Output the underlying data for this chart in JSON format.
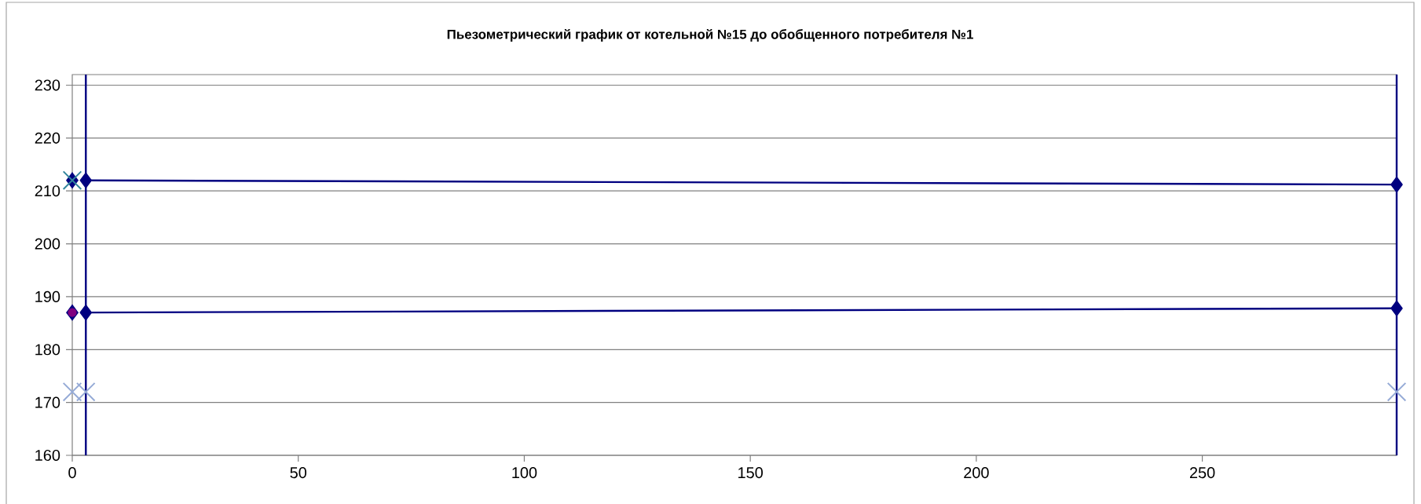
{
  "chart_data": {
    "type": "line",
    "title": "Пьезометрический график от котельной №15 до обобщенного потребителя №1",
    "xlim": [
      0,
      293
    ],
    "ylim": [
      160,
      232
    ],
    "xticks": [
      0,
      50,
      100,
      150,
      200,
      250
    ],
    "yticks": [
      160,
      170,
      180,
      190,
      200,
      210,
      220,
      230
    ],
    "grid": "y",
    "ref_lines": [
      {
        "axis": "x",
        "value": 3,
        "color": "#000080"
      },
      {
        "axis": "x",
        "value": 293,
        "color": "#000080"
      }
    ],
    "series": [
      {
        "color": "#000080",
        "marker": "diamond",
        "x": [
          3,
          293
        ],
        "values": [
          212,
          211.2
        ]
      },
      {
        "color": "#000080",
        "marker": "diamond",
        "x": [
          3,
          293
        ],
        "values": [
          187,
          187.8
        ]
      },
      {
        "type": "scatter",
        "color": "#000080",
        "marker": "diamond",
        "x": [
          0,
          0
        ],
        "values": [
          212,
          187
        ]
      },
      {
        "type": "scatter",
        "color": "#31859c",
        "marker": "cross",
        "x": [
          0
        ],
        "values": [
          212
        ]
      },
      {
        "type": "scatter",
        "color": "#800080",
        "marker": "circle",
        "x": [
          0
        ],
        "values": [
          187
        ]
      },
      {
        "type": "scatter",
        "color": "#95aad6",
        "marker": "cross",
        "x": [
          0,
          3,
          293
        ],
        "values": [
          172,
          172,
          172
        ]
      }
    ]
  }
}
